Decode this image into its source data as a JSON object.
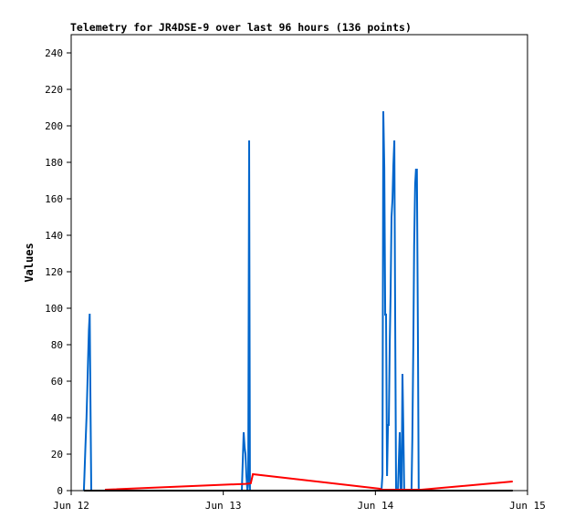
{
  "chart_data": {
    "type": "line",
    "title": "Telemetry for JR4DSE-9 over last 96 hours (136 points)",
    "xlabel": "",
    "ylabel": "Values",
    "xlim": [
      "Jun 12 00:00",
      "Jun 15 00:00"
    ],
    "ylim": [
      0,
      250
    ],
    "x_ticks": [
      "Jun 12",
      "Jun 13",
      "Jun 14",
      "Jun 15"
    ],
    "y_ticks": [
      0,
      20,
      40,
      60,
      80,
      100,
      120,
      140,
      160,
      180,
      200,
      220,
      240
    ],
    "grid": false,
    "legend": "none",
    "series": [
      {
        "color": "#0066cc",
        "points": [
          [
            "Jun 12 02:00",
            0
          ],
          [
            "Jun 12 02:05",
            8
          ],
          [
            "Jun 12 02:15",
            24
          ],
          [
            "Jun 12 02:25",
            40
          ],
          [
            "Jun 12 02:33",
            56
          ],
          [
            "Jun 12 02:40",
            72
          ],
          [
            "Jun 12 02:48",
            88
          ],
          [
            "Jun 12 02:55",
            97
          ],
          [
            "Jun 12 03:02",
            50
          ],
          [
            "Jun 12 03:10",
            0
          ],
          [
            "Jun 13 02:56",
            0
          ],
          [
            "Jun 13 03:04",
            16
          ],
          [
            "Jun 13 03:13",
            32
          ],
          [
            "Jun 13 03:22",
            24
          ],
          [
            "Jun 13 03:30",
            20
          ],
          [
            "Jun 13 03:39",
            8
          ],
          [
            "Jun 13 03:48",
            0
          ],
          [
            "Jun 13 03:56",
            4
          ],
          [
            "Jun 13 04:05",
            192
          ],
          [
            "Jun 13 04:13",
            0
          ],
          [
            "Jun 14 00:58",
            0
          ],
          [
            "Jun 14 01:07",
            9
          ],
          [
            "Jun 14 01:15",
            208
          ],
          [
            "Jun 14 01:24",
            177
          ],
          [
            "Jun 14 01:33",
            96
          ],
          [
            "Jun 14 01:41",
            97
          ],
          [
            "Jun 14 01:50",
            8
          ],
          [
            "Jun 14 01:59",
            36
          ],
          [
            "Jun 14 02:07",
            36
          ],
          [
            "Jun 14 02:16",
            82
          ],
          [
            "Jun 14 02:24",
            108
          ],
          [
            "Jun 14 02:33",
            150
          ],
          [
            "Jun 14 02:42",
            160
          ],
          [
            "Jun 14 02:50",
            178
          ],
          [
            "Jun 14 02:59",
            192
          ],
          [
            "Jun 14 03:07",
            96
          ],
          [
            "Jun 14 03:16",
            0
          ],
          [
            "Jun 14 03:33",
            0
          ],
          [
            "Jun 14 03:42",
            16
          ],
          [
            "Jun 14 03:50",
            32
          ],
          [
            "Jun 14 03:59",
            0
          ],
          [
            "Jun 14 04:08",
            0
          ],
          [
            "Jun 14 04:16",
            64
          ],
          [
            "Jun 14 04:25",
            32
          ],
          [
            "Jun 14 04:33",
            0
          ],
          [
            "Jun 14 05:42",
            0
          ],
          [
            "Jun 14 05:50",
            28
          ],
          [
            "Jun 14 05:59",
            80
          ],
          [
            "Jun 14 06:07",
            134
          ],
          [
            "Jun 14 06:16",
            168
          ],
          [
            "Jun 14 06:24",
            176
          ],
          [
            "Jun 14 06:33",
            176
          ],
          [
            "Jun 14 06:42",
            88
          ],
          [
            "Jun 14 06:50",
            0
          ]
        ]
      },
      {
        "color": "#ff0000",
        "points": [
          [
            "Jun 12 05:20",
            0.5
          ],
          [
            "Jun 13 03:30",
            3.7
          ],
          [
            "Jun 13 04:20",
            4
          ],
          [
            "Jun 13 04:40",
            9
          ],
          [
            "Jun 14 00:45",
            1
          ],
          [
            "Jun 14 01:00",
            0.5
          ],
          [
            "Jun 14 07:15",
            0.5
          ],
          [
            "Jun 14 21:40",
            5
          ]
        ]
      },
      {
        "color": "#000000",
        "points": [
          [
            "Jun 12 02:00",
            0
          ],
          [
            "Jun 14 21:40",
            0
          ]
        ]
      }
    ]
  }
}
